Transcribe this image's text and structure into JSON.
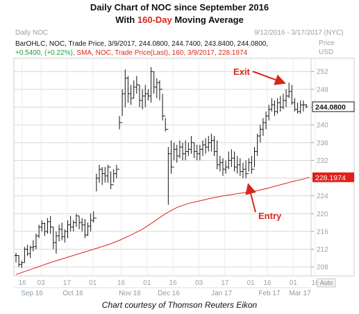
{
  "title_line1": "Daily Chart of NOC since September 2016",
  "title_line2_prefix": "With ",
  "title_line2_highlight": "160-Day",
  "title_line2_suffix": " Moving Average",
  "chart_header_left": "Daily NOC",
  "chart_header_right": "9/12/2016 - 3/17/2017 (NYC)",
  "price_label": "Price",
  "currency_label": "USD",
  "info_line1": "BarOHLC, NOC, Trade Price, 3/9/2017, 244.0800, 244.7400, 243.8400, 244.0800,",
  "info_line2_change": "+0.5400, (+0.22%),",
  "info_line2_sma": "SMA, NOC, Trade Price(Last),  160,  3/9/2017, 228.1974",
  "caption": "Chart courtesy of Thomson Reuters Eikon",
  "auto_label": "Auto",
  "colors": {
    "bars": "#111111",
    "sma": "#e0201b",
    "grid": "#d6d6d6",
    "annotation": "#d9261c",
    "highlight": "#d9261c",
    "info_green": "#1f9a3a",
    "info_red": "#d9261c"
  },
  "chart_data": {
    "type": "line",
    "title": "Daily Chart of NOC since September 2016",
    "ylim": [
      206,
      255
    ],
    "yticks": [
      208,
      212,
      216,
      220,
      224,
      228,
      232,
      236,
      240,
      244,
      248,
      252
    ],
    "x_day_ticks": [
      "16",
      "03",
      "17",
      "01",
      "16",
      "01",
      "16",
      "03",
      "17",
      "01",
      "16",
      "01",
      "16"
    ],
    "x_month_labels": [
      "Sep 16",
      "Oct 16",
      "Nov 16",
      "Dec 16",
      "Jan 17",
      "Feb 17",
      "Mar 17"
    ],
    "last_price_label": "244.0800",
    "sma_label": "228.1974",
    "annotations": [
      {
        "text": "Exit",
        "value": 249.5
      },
      {
        "text": "Entry",
        "value": 228.5
      }
    ],
    "series": [
      {
        "name": "BarOHLC, NOC",
        "kind": "ohlc",
        "points": [
          [
            211.2,
            209.0,
            210.6
          ],
          [
            210.6,
            208.0,
            208.6
          ],
          [
            209.4,
            207.8,
            209.0
          ],
          [
            212.5,
            209.0,
            212.0
          ],
          [
            213.0,
            210.5,
            211.0
          ],
          [
            212.8,
            210.0,
            212.4
          ],
          [
            214.0,
            211.5,
            212.6
          ],
          [
            215.5,
            212.0,
            215.0
          ],
          [
            217.5,
            214.5,
            217.0
          ],
          [
            218.5,
            216.0,
            217.8
          ],
          [
            218.0,
            215.0,
            216.0
          ],
          [
            219.0,
            215.5,
            218.2
          ],
          [
            219.5,
            215.5,
            217.0
          ],
          [
            217.0,
            212.0,
            213.5
          ],
          [
            216.0,
            211.0,
            215.0
          ],
          [
            217.5,
            213.8,
            216.5
          ],
          [
            218.0,
            214.0,
            214.8
          ],
          [
            216.5,
            213.5,
            216.0
          ],
          [
            218.5,
            214.5,
            217.5
          ],
          [
            219.5,
            216.0,
            217.0
          ],
          [
            218.5,
            216.0,
            218.0
          ],
          [
            220.0,
            217.0,
            219.5
          ],
          [
            219.5,
            216.5,
            218.0
          ],
          [
            219.0,
            216.0,
            217.5
          ],
          [
            218.8,
            214.5,
            215.2
          ],
          [
            218.0,
            215.0,
            217.2
          ],
          [
            220.0,
            216.0,
            218.5
          ],
          [
            220.5,
            218.0,
            219.0
          ],
          [
            229.0,
            225.0,
            228.0
          ],
          [
            231.0,
            227.0,
            230.0
          ],
          [
            230.5,
            226.5,
            229.0
          ],
          [
            230.5,
            227.0,
            228.5
          ],
          [
            231.0,
            227.0,
            230.5
          ],
          [
            229.5,
            225.5,
            226.5
          ],
          [
            230.0,
            227.0,
            229.0
          ],
          [
            231.0,
            228.0,
            230.0
          ],
          [
            242.0,
            239.0,
            240.5
          ],
          [
            248.0,
            242.0,
            247.0
          ],
          [
            252.5,
            244.0,
            250.5
          ],
          [
            251.0,
            245.0,
            247.0
          ],
          [
            249.0,
            244.5,
            246.0
          ],
          [
            250.0,
            246.0,
            248.5
          ],
          [
            251.0,
            247.0,
            249.0
          ],
          [
            249.0,
            244.0,
            245.5
          ],
          [
            248.0,
            243.5,
            246.5
          ],
          [
            249.0,
            244.0,
            247.0
          ],
          [
            248.0,
            245.5,
            246.5
          ],
          [
            253.0,
            245.0,
            252.0
          ],
          [
            252.0,
            247.0,
            248.5
          ],
          [
            250.5,
            246.0,
            249.5
          ],
          [
            250.0,
            245.5,
            248.0
          ],
          [
            247.0,
            241.0,
            242.0
          ],
          [
            241.5,
            238.5,
            239.0
          ],
          [
            235.0,
            222.0,
            233.5
          ],
          [
            236.5,
            229.0,
            230.5
          ],
          [
            236.0,
            232.0,
            234.5
          ],
          [
            235.5,
            231.5,
            233.0
          ],
          [
            236.5,
            232.5,
            235.0
          ],
          [
            236.0,
            232.0,
            233.5
          ],
          [
            236.5,
            232.0,
            234.0
          ],
          [
            236.0,
            233.0,
            234.5
          ],
          [
            237.5,
            233.5,
            236.0
          ],
          [
            236.0,
            232.5,
            234.0
          ],
          [
            235.5,
            232.0,
            233.5
          ],
          [
            235.5,
            232.0,
            234.5
          ],
          [
            236.5,
            233.0,
            235.5
          ],
          [
            237.0,
            233.5,
            235.0
          ],
          [
            237.5,
            234.0,
            236.0
          ],
          [
            238.0,
            234.0,
            236.5
          ],
          [
            237.5,
            233.0,
            234.0
          ],
          [
            236.5,
            230.0,
            231.0
          ],
          [
            233.0,
            229.5,
            231.5
          ],
          [
            232.5,
            228.5,
            230.0
          ],
          [
            232.0,
            229.0,
            230.5
          ],
          [
            234.0,
            230.0,
            232.0
          ],
          [
            234.5,
            230.5,
            232.5
          ],
          [
            234.0,
            229.5,
            230.5
          ],
          [
            233.0,
            229.0,
            231.0
          ],
          [
            232.5,
            228.5,
            229.5
          ],
          [
            231.5,
            228.0,
            230.0
          ],
          [
            232.0,
            228.0,
            229.0
          ],
          [
            232.5,
            229.5,
            231.5
          ],
          [
            233.0,
            229.0,
            230.0
          ],
          [
            235.0,
            230.5,
            234.0
          ],
          [
            238.0,
            233.0,
            237.5
          ],
          [
            240.0,
            236.0,
            239.0
          ],
          [
            241.5,
            237.5,
            240.5
          ],
          [
            243.0,
            239.0,
            242.0
          ],
          [
            244.5,
            241.0,
            243.5
          ],
          [
            246.0,
            243.0,
            244.5
          ],
          [
            245.5,
            242.0,
            243.0
          ],
          [
            246.0,
            242.5,
            245.0
          ],
          [
            246.5,
            243.0,
            244.0
          ],
          [
            247.0,
            243.5,
            245.5
          ],
          [
            248.0,
            244.0,
            246.5
          ],
          [
            249.5,
            246.0,
            247.5
          ],
          [
            249.0,
            244.5,
            245.0
          ],
          [
            246.0,
            243.0,
            243.5
          ],
          [
            245.0,
            242.5,
            243.0
          ],
          [
            245.5,
            242.5,
            244.5
          ],
          [
            245.5,
            243.0,
            244.5
          ],
          [
            244.7,
            243.8,
            244.08
          ]
        ]
      },
      {
        "name": "SMA, NOC, Trade Price(Last), 160",
        "kind": "line",
        "points": [
          [
            0,
            206.3
          ],
          [
            4,
            207.2
          ],
          [
            8,
            208.1
          ],
          [
            12,
            209.0
          ],
          [
            16,
            209.8
          ],
          [
            20,
            210.6
          ],
          [
            24,
            211.4
          ],
          [
            28,
            212.2
          ],
          [
            32,
            213.0
          ],
          [
            36,
            214.0
          ],
          [
            40,
            215.2
          ],
          [
            44,
            216.5
          ],
          [
            48,
            218.2
          ],
          [
            52,
            220.0
          ],
          [
            56,
            221.4
          ],
          [
            60,
            222.3
          ],
          [
            64,
            222.9
          ],
          [
            68,
            223.5
          ],
          [
            72,
            224.0
          ],
          [
            76,
            224.4
          ],
          [
            80,
            224.8
          ],
          [
            84,
            225.2
          ],
          [
            88,
            225.8
          ],
          [
            92,
            226.5
          ],
          [
            96,
            227.2
          ],
          [
            100,
            227.8
          ],
          [
            102,
            228.1974
          ]
        ]
      }
    ]
  }
}
